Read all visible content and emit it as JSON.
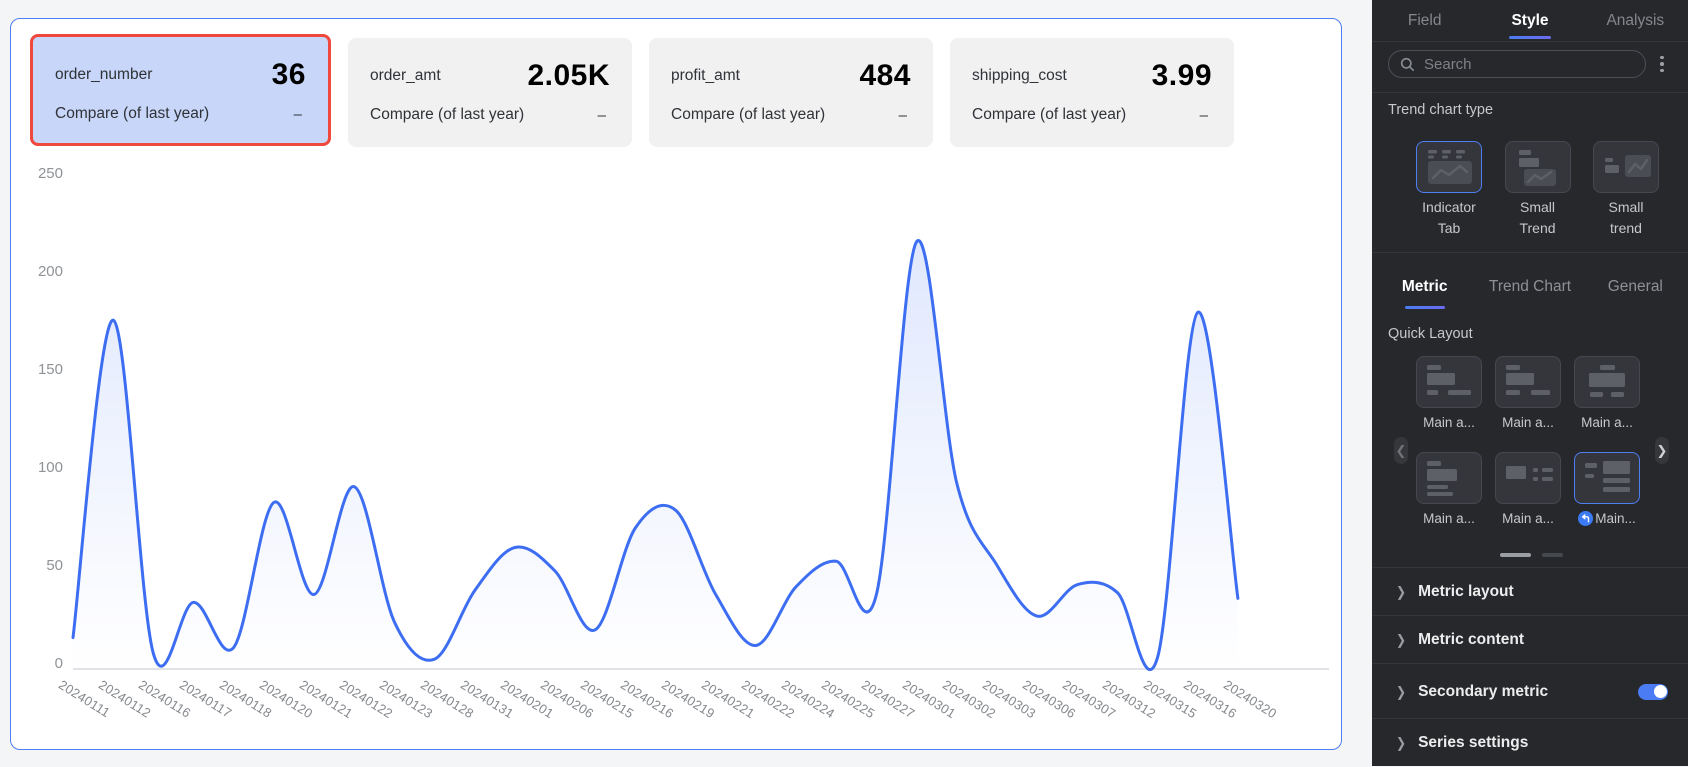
{
  "metric_cards": [
    {
      "label": "order_number",
      "value": "36",
      "compare_label": "Compare (of last year)",
      "compare_value": "–",
      "selected": true
    },
    {
      "label": "order_amt",
      "value": "2.05K",
      "compare_label": "Compare (of last year)",
      "compare_value": "–",
      "selected": false
    },
    {
      "label": "profit_amt",
      "value": "484",
      "compare_label": "Compare (of last year)",
      "compare_value": "–",
      "selected": false
    },
    {
      "label": "shipping_cost",
      "value": "3.99",
      "compare_label": "Compare (of last year)",
      "compare_value": "–",
      "selected": false
    }
  ],
  "chart_data": {
    "type": "line",
    "smooth": true,
    "area": true,
    "categories": [
      "20240111",
      "20240112",
      "20240116",
      "20240117",
      "20240118",
      "20240120",
      "20240121",
      "20240122",
      "20240123",
      "20240128",
      "20240131",
      "20240201",
      "20240206",
      "20240215",
      "20240216",
      "20240219",
      "20240221",
      "20240222",
      "20240224",
      "20240225",
      "20240227",
      "20240301",
      "20240302",
      "20240303",
      "20240306",
      "20240307",
      "20240312",
      "20240315",
      "20240316",
      "20240320"
    ],
    "values": [
      16,
      178,
      8,
      34,
      11,
      85,
      38,
      93,
      24,
      5,
      40,
      62,
      50,
      20,
      72,
      81,
      38,
      12,
      42,
      55,
      38,
      218,
      95,
      53,
      27,
      43,
      39,
      6,
      182,
      36
    ],
    "title": "",
    "xlabel": "",
    "ylabel": "",
    "ylim": [
      0,
      250
    ],
    "yticks": [
      0,
      50,
      100,
      150,
      200,
      250
    ],
    "grid": false,
    "line_color": "#3D6EF2",
    "area_color": "#3D6EF2",
    "x_label_rotate_deg": 32
  },
  "panel": {
    "tabs": [
      {
        "label": "Field",
        "active": false
      },
      {
        "label": "Style",
        "active": true
      },
      {
        "label": "Analysis",
        "active": false
      }
    ],
    "search": {
      "placeholder": "Search"
    },
    "trend_chart_type": {
      "title": "Trend chart type",
      "options": [
        {
          "label": "Indicator\nTab",
          "icon": "indicator-tab",
          "selected": true
        },
        {
          "label": "Small\nTrend",
          "icon": "small-trend",
          "selected": false
        },
        {
          "label": "Small\ntrend",
          "icon": "small-trend-2",
          "selected": false
        }
      ]
    },
    "subtabs": [
      {
        "label": "Metric",
        "active": true
      },
      {
        "label": "Trend Chart",
        "active": false
      },
      {
        "label": "General",
        "active": false
      }
    ],
    "quick_layout": {
      "title": "Quick Layout",
      "items": [
        {
          "label": "Main a...",
          "icon": "layout-1",
          "selected": false,
          "applied": false
        },
        {
          "label": "Main a...",
          "icon": "layout-2",
          "selected": false,
          "applied": false
        },
        {
          "label": "Main a...",
          "icon": "layout-3",
          "selected": false,
          "applied": false
        },
        {
          "label": "Main a...",
          "icon": "layout-4",
          "selected": false,
          "applied": false
        },
        {
          "label": "Main a...",
          "icon": "layout-5",
          "selected": false,
          "applied": false
        },
        {
          "label": "Main...",
          "icon": "layout-6",
          "selected": true,
          "applied": true
        }
      ],
      "pagination": {
        "pages": 2,
        "active": 0
      }
    },
    "collapsible_sections": [
      {
        "label": "Metric layout",
        "toggle": null
      },
      {
        "label": "Metric content",
        "toggle": null
      },
      {
        "label": "Secondary metric",
        "toggle": "on"
      },
      {
        "label": "Series settings",
        "toggle": null
      }
    ]
  },
  "colors": {
    "accent_blue": "#4B7CF3",
    "line_blue": "#3D6EF2",
    "selection_border_red": "#F0483C",
    "selected_card_bg": "#C7D6F9",
    "panel_bg": "#26282C",
    "widget_outline": "#4D7EF7"
  },
  "icons": [
    "search-icon",
    "kebab-menu-icon",
    "chevron-left-icon",
    "chevron-right-icon",
    "collapse-chevron-icon",
    "applied-icon",
    "indicator-tab-icon",
    "small-trend-icon",
    "layout-thumbnail-icon"
  ]
}
